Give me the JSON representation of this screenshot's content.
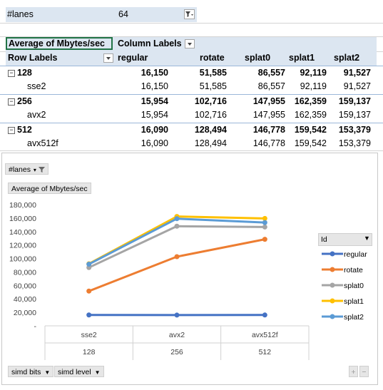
{
  "filter": {
    "label": "#lanes",
    "value": "64"
  },
  "pivot": {
    "value_header": "Average of Mbytes/sec",
    "column_labels": "Column Labels",
    "row_labels": "Row Labels",
    "columns": [
      "regular",
      "rotate",
      "splat0",
      "splat1",
      "splat2"
    ],
    "rows": [
      {
        "label": "128",
        "group": true,
        "values": [
          "16,150",
          "51,585",
          "86,557",
          "92,119",
          "91,527"
        ]
      },
      {
        "label": "sse2",
        "group": false,
        "values": [
          "16,150",
          "51,585",
          "86,557",
          "92,119",
          "91,527"
        ]
      },
      {
        "label": "256",
        "group": true,
        "values": [
          "15,954",
          "102,716",
          "147,955",
          "162,359",
          "159,137"
        ]
      },
      {
        "label": "avx2",
        "group": false,
        "values": [
          "15,954",
          "102,716",
          "147,955",
          "162,359",
          "159,137"
        ]
      },
      {
        "label": "512",
        "group": true,
        "values": [
          "16,090",
          "128,494",
          "146,778",
          "159,542",
          "153,379"
        ]
      },
      {
        "label": "avx512f",
        "group": false,
        "values": [
          "16,090",
          "128,494",
          "146,778",
          "159,542",
          "153,379"
        ]
      }
    ]
  },
  "chart": {
    "filter_button": "#lanes",
    "value_button": "Average of Mbytes/sec",
    "legend_title": "Id",
    "axis_buttons": [
      "simd bits",
      "simd level"
    ],
    "zoom_in": "+",
    "zoom_out": "−"
  },
  "chart_data": {
    "type": "line",
    "categories": [
      "sse2",
      "avx2",
      "avx512f"
    ],
    "category_groups": [
      "128",
      "256",
      "512"
    ],
    "ylim": [
      0,
      180000
    ],
    "yticks": [
      "-",
      "20,000",
      "40,000",
      "60,000",
      "80,000",
      "100,000",
      "120,000",
      "140,000",
      "160,000",
      "180,000"
    ],
    "legend_position": "right",
    "grid": false,
    "series": [
      {
        "name": "regular",
        "color": "#4472c4",
        "values": [
          16150,
          15954,
          16090
        ]
      },
      {
        "name": "rotate",
        "color": "#ed7d31",
        "values": [
          51585,
          102716,
          128494
        ]
      },
      {
        "name": "splat0",
        "color": "#a5a5a5",
        "values": [
          86557,
          147955,
          146778
        ]
      },
      {
        "name": "splat1",
        "color": "#ffc000",
        "values": [
          92119,
          162359,
          159542
        ]
      },
      {
        "name": "splat2",
        "color": "#5b9bd5",
        "values": [
          91527,
          159137,
          153379
        ]
      }
    ]
  }
}
